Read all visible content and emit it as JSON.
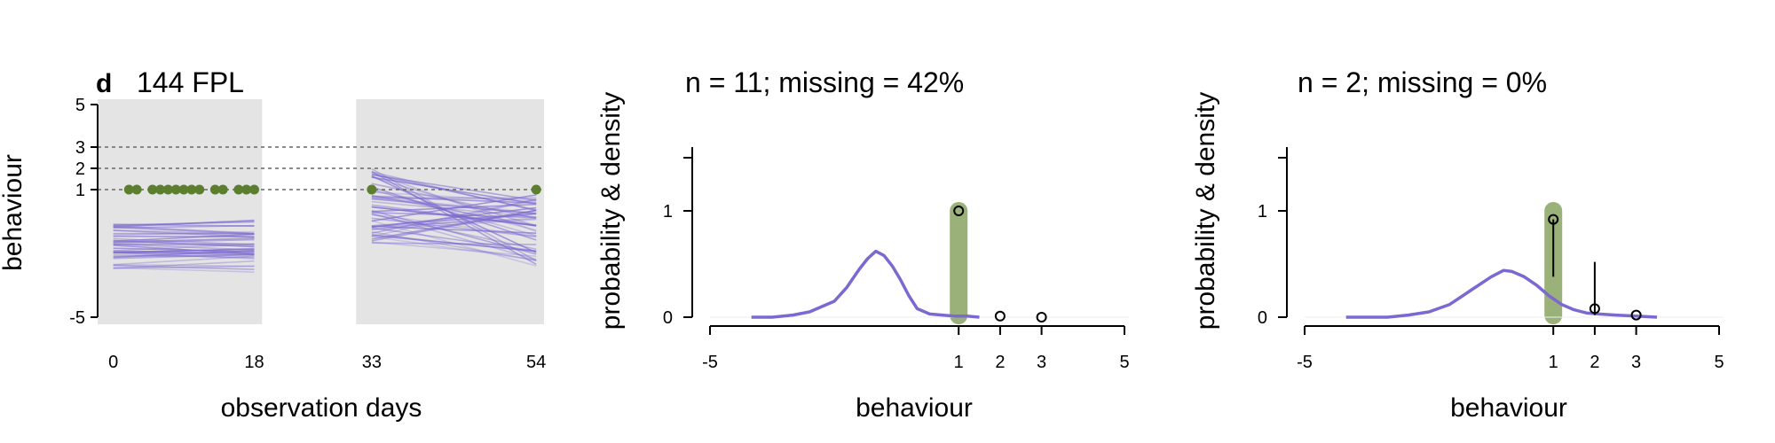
{
  "panel_letter": "d",
  "panel_title": "144 FPL",
  "chart_data": [
    {
      "type": "line",
      "xlabel": "observation days",
      "ylabel": "behaviour",
      "x_ticks": [
        0,
        18,
        33,
        54
      ],
      "y_ticks": [
        -5,
        1,
        2,
        3,
        5
      ],
      "xlim": [
        -2,
        55
      ],
      "ylim": [
        -5,
        5
      ],
      "observation_windows": [
        [
          -2,
          19
        ],
        [
          31,
          55
        ]
      ],
      "reference_lines": [
        1,
        2,
        3
      ],
      "observed_points": {
        "x": [
          2,
          3,
          5,
          6,
          7,
          8,
          9,
          10,
          11,
          13,
          14,
          16,
          17,
          18,
          33,
          54
        ],
        "y": [
          1,
          1,
          1,
          1,
          1,
          1,
          1,
          1,
          1,
          1,
          1,
          1,
          1,
          1,
          1,
          1
        ]
      },
      "colors": {
        "trajectories": "#7B68D0",
        "observed": "#5B7F2E",
        "shade": "#E4E4E4"
      }
    },
    {
      "type": "area",
      "title": "n = 11; missing = 42%",
      "xlabel": "behaviour",
      "ylabel": "probability & density",
      "x_ticks": [
        -5,
        1,
        2,
        3,
        5
      ],
      "y_ticks": [
        0,
        1
      ],
      "xlim": [
        -5,
        5
      ],
      "ylim": [
        0,
        1.5
      ],
      "highlight_value": 1,
      "density": {
        "x": [
          -4,
          -3.5,
          -3,
          -2.6,
          -2.3,
          -2,
          -1.7,
          -1.4,
          -1.2,
          -1,
          -0.8,
          -0.6,
          -0.4,
          -0.2,
          0,
          0.3,
          0.6,
          0.9,
          1.2,
          1.5
        ],
        "y": [
          0,
          0,
          0.02,
          0.05,
          0.1,
          0.15,
          0.28,
          0.45,
          0.55,
          0.62,
          0.58,
          0.48,
          0.35,
          0.2,
          0.08,
          0.03,
          0.02,
          0.01,
          0.01,
          0
        ]
      },
      "point_estimates": [
        {
          "x": 1,
          "y": 1.0,
          "lower": 1.0,
          "upper": 1.0
        },
        {
          "x": 2,
          "y": 0.01,
          "lower": 0.01,
          "upper": 0.01
        },
        {
          "x": 3,
          "y": 0.0,
          "lower": 0.0,
          "upper": 0.0
        }
      ],
      "colors": {
        "density": "#7B68D0",
        "highlight": "#8FA86A"
      }
    },
    {
      "type": "area",
      "title": "n = 2; missing = 0%",
      "xlabel": "behaviour",
      "ylabel": "probability & density",
      "x_ticks": [
        -5,
        1,
        2,
        3,
        5
      ],
      "y_ticks": [
        0,
        1
      ],
      "xlim": [
        -5,
        5
      ],
      "ylim": [
        0,
        1.5
      ],
      "highlight_value": 1,
      "density": {
        "x": [
          -4,
          -3,
          -2.5,
          -2,
          -1.5,
          -1,
          -0.5,
          -0.2,
          0,
          0.3,
          0.6,
          0.9,
          1.2,
          1.5,
          1.8,
          2.1,
          2.5,
          3,
          3.5
        ],
        "y": [
          0,
          0,
          0.02,
          0.05,
          0.12,
          0.25,
          0.38,
          0.44,
          0.43,
          0.38,
          0.3,
          0.2,
          0.12,
          0.07,
          0.04,
          0.03,
          0.02,
          0.01,
          0
        ]
      },
      "point_estimates": [
        {
          "x": 1,
          "y": 0.92,
          "lower": 0.38,
          "upper": 0.92
        },
        {
          "x": 2,
          "y": 0.08,
          "lower": 0.02,
          "upper": 0.52
        },
        {
          "x": 3,
          "y": 0.02,
          "lower": 0.02,
          "upper": 0.02
        }
      ],
      "colors": {
        "density": "#7B68D0",
        "highlight": "#8FA86A"
      }
    }
  ]
}
